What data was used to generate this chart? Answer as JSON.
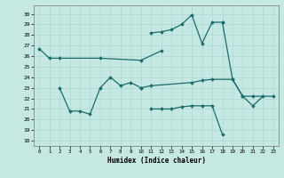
{
  "background_color": "#c5e8e3",
  "line_color": "#1a6b6b",
  "xlim": [
    -0.5,
    23.5
  ],
  "ylim": [
    17.5,
    30.8
  ],
  "yticks": [
    18,
    19,
    20,
    21,
    22,
    23,
    24,
    25,
    26,
    27,
    28,
    29,
    30
  ],
  "xticks": [
    0,
    1,
    2,
    3,
    4,
    5,
    6,
    7,
    8,
    9,
    10,
    11,
    12,
    13,
    14,
    15,
    16,
    17,
    18,
    19,
    20,
    21,
    22,
    23
  ],
  "xlabel": "Humidex (Indice chaleur)",
  "series": [
    {
      "x": [
        0,
        1,
        2,
        6,
        10,
        12
      ],
      "y": [
        26.7,
        25.8,
        25.8,
        25.8,
        25.6,
        26.5
      ]
    },
    {
      "x": [
        11,
        12,
        13,
        14,
        15,
        16,
        17,
        18
      ],
      "y": [
        28.2,
        28.3,
        28.5,
        29.0,
        29.9,
        27.2,
        29.2,
        29.2
      ]
    },
    {
      "x": [
        18,
        19,
        20,
        21,
        22
      ],
      "y": [
        29.2,
        23.8,
        22.2,
        21.3,
        22.2
      ]
    },
    {
      "x": [
        2,
        3,
        4,
        5,
        6,
        7,
        8,
        9,
        10
      ],
      "y": [
        23.0,
        20.8,
        20.8,
        20.5,
        23.0,
        24.0,
        23.2,
        23.5,
        23.0
      ]
    },
    {
      "x": [
        10,
        11,
        15,
        16,
        17,
        19,
        20,
        21,
        23
      ],
      "y": [
        23.0,
        23.2,
        23.5,
        23.7,
        23.8,
        23.8,
        22.2,
        22.2,
        22.2
      ]
    },
    {
      "x": [
        11,
        12,
        13,
        14,
        15,
        16,
        17,
        18
      ],
      "y": [
        21.0,
        21.0,
        21.0,
        21.2,
        21.3,
        21.3,
        21.3,
        18.6
      ]
    }
  ]
}
